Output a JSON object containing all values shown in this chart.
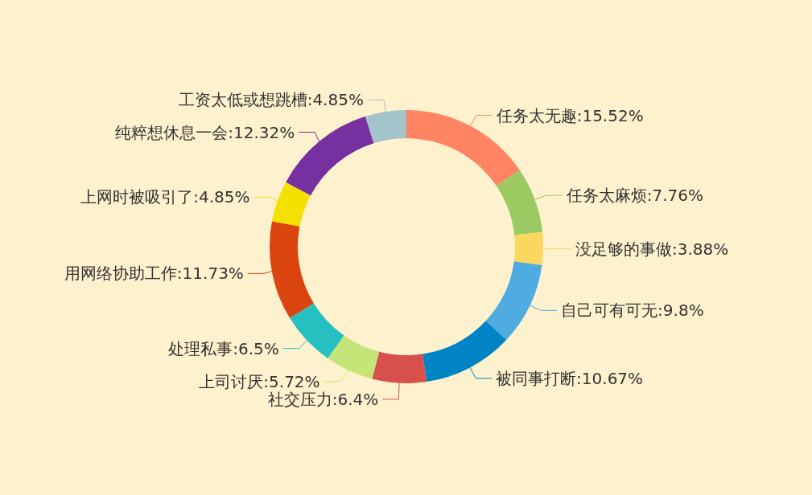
{
  "chart_data": {
    "type": "donut",
    "categories": [
      "任务太无趣",
      "任务太麻烦",
      "没足够的事做",
      "自己可有可无",
      "被同事打断",
      "社交压力",
      "上司讨厌",
      "处理私事",
      "用网络协助工作",
      "上网时被吸引了",
      "纯粹想休息一会",
      "工资太低或想跳槽"
    ],
    "values": [
      15.52,
      7.76,
      3.88,
      9.8,
      10.67,
      6.4,
      5.72,
      6.5,
      11.73,
      4.85,
      12.32,
      4.85
    ],
    "value_labels": [
      "15.52%",
      "7.76%",
      "3.88%",
      "9.8%",
      "10.67%",
      "6.4%",
      "5.72%",
      "6.5%",
      "11.73%",
      "4.85%",
      "12.32%",
      "4.85%"
    ],
    "colors": [
      "#ff8463",
      "#9bca63",
      "#fad860",
      "#50abe0",
      "#0084c6",
      "#d7504b",
      "#c6e579",
      "#26c0c0",
      "#d9440f",
      "#f4e001",
      "#7630a0",
      "#a3c4cb"
    ]
  }
}
